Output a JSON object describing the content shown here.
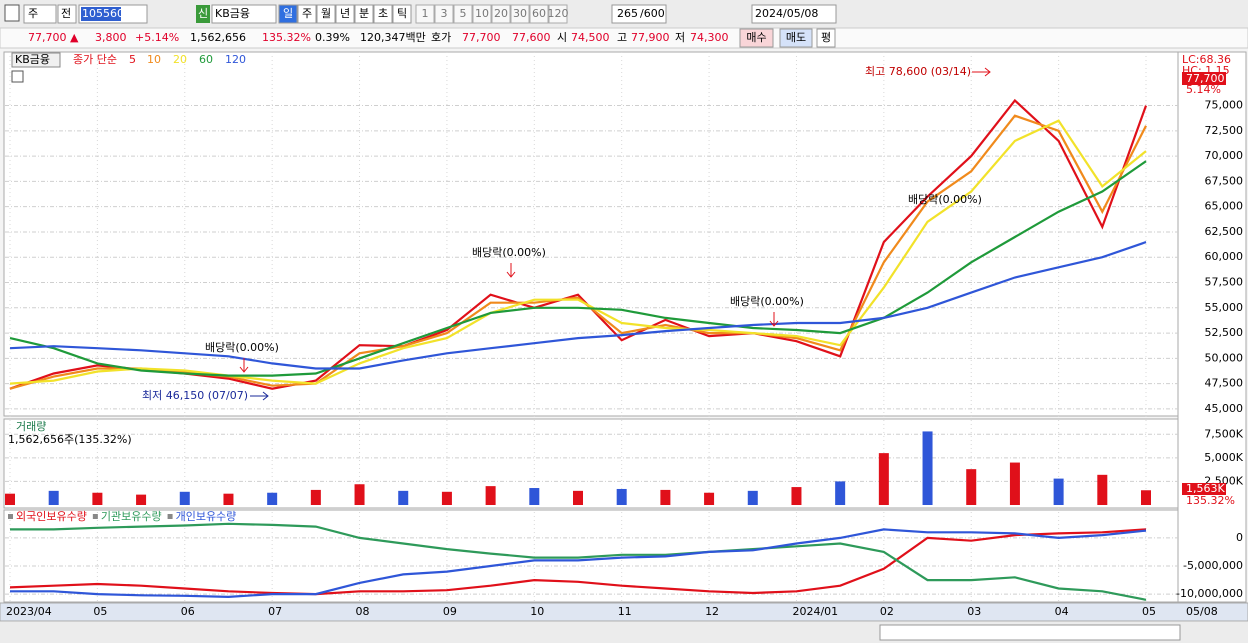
{
  "toolbar": {
    "market": "주",
    "prev": "전",
    "code": "105560",
    "badge": "신",
    "name": "KB금융",
    "period_buttons": [
      "일",
      "주",
      "월",
      "년",
      "분",
      "초",
      "틱"
    ],
    "count_buttons": [
      "1",
      "3",
      "5",
      "10",
      "20",
      "30",
      "60",
      "120"
    ],
    "count": "265",
    "max": "/600",
    "date": "2024/05/08"
  },
  "quote": [
    {
      "text": "77,700 ▲",
      "color": "#e0002a"
    },
    {
      "text": "3,800",
      "color": "#e0002a"
    },
    {
      "text": "+5.14%",
      "color": "#e0002a"
    },
    {
      "text": "1,562,656",
      "color": "#000000"
    },
    {
      "text": "135.32%",
      "color": "#e0002a"
    },
    {
      "text": "0.39%",
      "color": "#000000"
    },
    {
      "text": "120,347백만",
      "color": "#000000"
    },
    {
      "text": "호가",
      "color": "#000000"
    },
    {
      "text": "77,700",
      "color": "#e0002a"
    },
    {
      "text": "77,600",
      "color": "#e0002a"
    },
    {
      "text": "시",
      "color": "#000000"
    },
    {
      "text": "74,500",
      "color": "#e0002a"
    },
    {
      "text": "고",
      "color": "#000000"
    },
    {
      "text": "77,900",
      "color": "#e0002a"
    },
    {
      "text": "저",
      "color": "#000000"
    },
    {
      "text": "74,300",
      "color": "#e0002a"
    }
  ],
  "buttons": [
    "매수",
    "매도",
    "평"
  ],
  "x_axis": {
    "categories": [
      "2023/04",
      null,
      "05",
      null,
      "06",
      null,
      "07",
      null,
      "08",
      null,
      "09",
      null,
      "10",
      null,
      "11",
      null,
      "12",
      null,
      "2024/01",
      null,
      "02",
      null,
      "03",
      null,
      "04",
      null,
      "05"
    ],
    "end_label": "05/08"
  },
  "chart_data": [
    {
      "type": "line",
      "title": "KB금융",
      "legend_prefix": "종가 단순",
      "lc": "LC:68.36",
      "hc": "HC: 1.15",
      "last_price": "77,700",
      "last_change": "5.14%",
      "ylim": [
        44300,
        79900
      ],
      "yticks": [
        {
          "value": 45000,
          "label": "45,000"
        },
        {
          "value": 47500,
          "label": "47,500"
        },
        {
          "value": 50000,
          "label": "50,000"
        },
        {
          "value": 52500,
          "label": "52,500"
        },
        {
          "value": 55000,
          "label": "55,000"
        },
        {
          "value": 57500,
          "label": "57,500"
        },
        {
          "value": 60000,
          "label": "60,000"
        },
        {
          "value": 62500,
          "label": "62,500"
        },
        {
          "value": 65000,
          "label": "65,000"
        },
        {
          "value": 67500,
          "label": "67,500"
        },
        {
          "value": 70000,
          "label": "70,000"
        },
        {
          "value": 72500,
          "label": "72,500"
        },
        {
          "value": 75000,
          "label": "75,000"
        }
      ],
      "annotations": [
        "최고 78,600 (03/14)",
        "최저 46,150 (07/07)",
        "배당락(0.00%)",
        "배당락(0.00%)",
        "배당락(0.00%)",
        "배당락(0.00%)"
      ],
      "series": [
        {
          "name": "5",
          "color": "#e0101a",
          "values": [
            47000,
            48500,
            49300,
            48900,
            48500,
            48000,
            47000,
            47800,
            51300,
            51200,
            52800,
            56300,
            55000,
            56300,
            51800,
            53800,
            52200,
            52500,
            51700,
            50200,
            61500,
            66000,
            70000,
            75500,
            71500,
            63000,
            75000
          ]
        },
        {
          "name": "10",
          "color": "#f08a1c",
          "values": [
            47000,
            48200,
            49000,
            49000,
            48600,
            48200,
            47300,
            47500,
            50500,
            51200,
            52500,
            55500,
            55500,
            56000,
            52500,
            53300,
            52500,
            52500,
            52000,
            50800,
            59500,
            65500,
            68500,
            74000,
            72500,
            64500,
            73000
          ]
        },
        {
          "name": "20",
          "color": "#f2e22a",
          "values": [
            47500,
            47800,
            48700,
            49000,
            48800,
            48300,
            47800,
            47500,
            49500,
            51000,
            52000,
            54500,
            55800,
            55800,
            53500,
            53000,
            52800,
            52500,
            52200,
            51300,
            57000,
            63500,
            66500,
            71500,
            73500,
            67000,
            70500
          ]
        },
        {
          "name": "60",
          "color": "#1f9a3a",
          "values": [
            52000,
            51000,
            49500,
            48800,
            48500,
            48300,
            48300,
            48500,
            50000,
            51500,
            53000,
            54500,
            55000,
            55000,
            54800,
            54000,
            53500,
            53000,
            52800,
            52500,
            54000,
            56500,
            59500,
            62000,
            64500,
            66500,
            69500
          ]
        },
        {
          "name": "120",
          "color": "#2f56d8",
          "values": [
            51000,
            51200,
            51000,
            50800,
            50500,
            50200,
            49500,
            49000,
            49000,
            49800,
            50500,
            51000,
            51500,
            52000,
            52300,
            52700,
            53000,
            53300,
            53500,
            53500,
            54000,
            55000,
            56500,
            58000,
            59000,
            60000,
            61500
          ]
        }
      ]
    },
    {
      "type": "bar",
      "title": "거래량",
      "subtitle": "1,562,656주(135.32%)",
      "last_value": "1,563K",
      "last_ratio": "135.32%",
      "ylim": [
        0,
        8800000
      ],
      "yticks": [
        {
          "value": 2500000,
          "label": "2,500K"
        },
        {
          "value": 5000000,
          "label": "5,000K"
        },
        {
          "value": 7500000,
          "label": "7,500K"
        }
      ],
      "values": [
        1200000,
        1500000,
        1300000,
        1100000,
        1400000,
        1200000,
        1300000,
        1600000,
        2200000,
        1500000,
        1400000,
        2000000,
        1800000,
        1500000,
        1700000,
        1600000,
        1300000,
        1500000,
        1900000,
        2500000,
        5500000,
        7800000,
        3800000,
        4500000,
        2800000,
        3200000,
        1562656
      ],
      "colors": [
        "#e0101a",
        "#2f56d8",
        "#e0101a",
        "#e0101a",
        "#2f56d8",
        "#e0101a",
        "#2f56d8",
        "#e0101a",
        "#e0101a",
        "#2f56d8",
        "#e0101a",
        "#e0101a",
        "#2f56d8",
        "#e0101a",
        "#2f56d8",
        "#e0101a",
        "#e0101a",
        "#2f56d8",
        "#e0101a",
        "#2f56d8",
        "#e0101a",
        "#2f56d8",
        "#e0101a",
        "#e0101a",
        "#2f56d8",
        "#e0101a",
        "#e0101a"
      ]
    },
    {
      "type": "line",
      "ylim": [
        -11400000,
        4600000
      ],
      "yticks": [
        0,
        {
          "value": -5000000,
          "label": "-5,000,000"
        },
        {
          "value": -10000000,
          "label": "-10,000,000"
        }
      ],
      "series": [
        {
          "name": "외국인보유수량",
          "color": "#e0101a",
          "values": [
            -8800000,
            -8500000,
            -8200000,
            -8500000,
            -9000000,
            -9500000,
            -9800000,
            -10000000,
            -9500000,
            -9500000,
            -9300000,
            -8500000,
            -7500000,
            -7800000,
            -8500000,
            -9000000,
            -9500000,
            -9800000,
            -9500000,
            -8500000,
            -5500000,
            0,
            -500000,
            500000,
            800000,
            1000000,
            1500000
          ]
        },
        {
          "name": "기관보유수량",
          "color": "#2e9a5a",
          "values": [
            1500000,
            1500000,
            1800000,
            2000000,
            2200000,
            2500000,
            2300000,
            2000000,
            0,
            -1000000,
            -2000000,
            -2800000,
            -3500000,
            -3500000,
            -3000000,
            -3000000,
            -2500000,
            -2000000,
            -1500000,
            -1000000,
            -2500000,
            -7500000,
            -7500000,
            -7000000,
            -9000000,
            -9500000,
            -11000000
          ]
        },
        {
          "name": "개인보유수량",
          "color": "#2f56d8",
          "values": [
            -9500000,
            -9500000,
            -10000000,
            -10200000,
            -10300000,
            -10500000,
            -10000000,
            -10000000,
            -8000000,
            -6500000,
            -6000000,
            -5000000,
            -4000000,
            -4000000,
            -3500000,
            -3300000,
            -2500000,
            -2200000,
            -1000000,
            0,
            1500000,
            1000000,
            1000000,
            800000,
            0,
            500000,
            1300000
          ]
        }
      ]
    }
  ]
}
